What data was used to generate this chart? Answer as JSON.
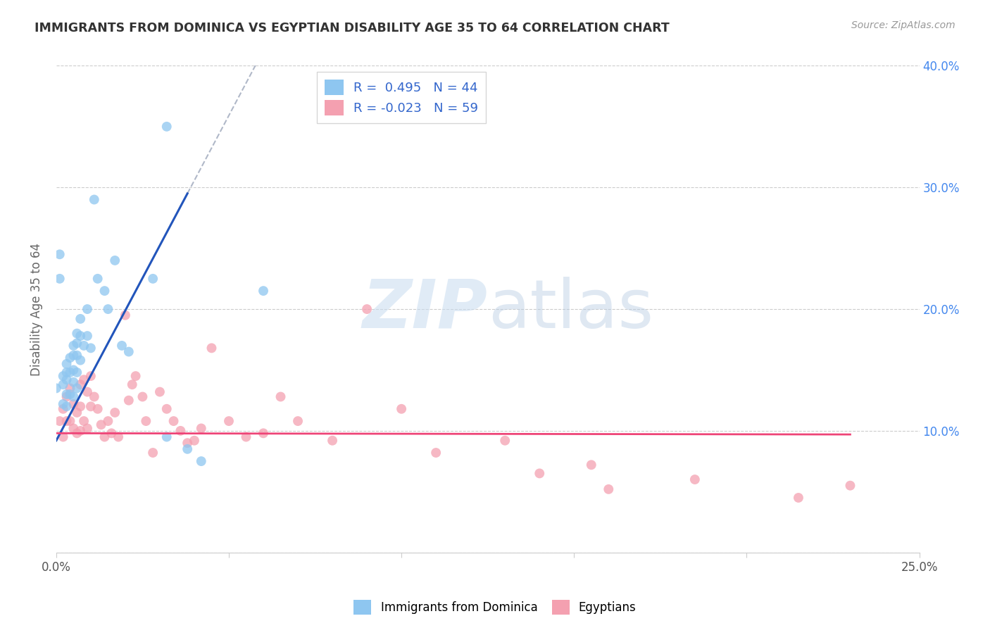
{
  "title": "IMMIGRANTS FROM DOMINICA VS EGYPTIAN DISABILITY AGE 35 TO 64 CORRELATION CHART",
  "source": "Source: ZipAtlas.com",
  "ylabel": "Disability Age 35 to 64",
  "xlim": [
    0.0,
    0.25
  ],
  "ylim": [
    0.0,
    0.4
  ],
  "dominica_R": 0.495,
  "dominica_N": 44,
  "egyptian_R": -0.023,
  "egyptian_N": 59,
  "blue_color": "#8ec6f0",
  "pink_color": "#f4a0b0",
  "blue_line_color": "#2255bb",
  "pink_line_color": "#ee4477",
  "dashed_line_color": "#b0b8c8",
  "watermark_zip": "ZIP",
  "watermark_atlas": "atlas",
  "dominica_x": [
    0.0,
    0.001,
    0.001,
    0.002,
    0.002,
    0.002,
    0.003,
    0.003,
    0.003,
    0.003,
    0.003,
    0.004,
    0.004,
    0.004,
    0.005,
    0.005,
    0.005,
    0.005,
    0.005,
    0.006,
    0.006,
    0.006,
    0.006,
    0.006,
    0.007,
    0.007,
    0.007,
    0.008,
    0.009,
    0.009,
    0.01,
    0.011,
    0.012,
    0.014,
    0.015,
    0.017,
    0.019,
    0.021,
    0.028,
    0.032,
    0.032,
    0.038,
    0.042,
    0.06
  ],
  "dominica_y": [
    0.135,
    0.245,
    0.225,
    0.145,
    0.138,
    0.122,
    0.155,
    0.148,
    0.142,
    0.13,
    0.12,
    0.16,
    0.148,
    0.13,
    0.17,
    0.162,
    0.15,
    0.14,
    0.128,
    0.18,
    0.172,
    0.162,
    0.148,
    0.135,
    0.192,
    0.178,
    0.158,
    0.17,
    0.2,
    0.178,
    0.168,
    0.29,
    0.225,
    0.215,
    0.2,
    0.24,
    0.17,
    0.165,
    0.225,
    0.35,
    0.095,
    0.085,
    0.075,
    0.215
  ],
  "egyptian_x": [
    0.001,
    0.002,
    0.002,
    0.003,
    0.003,
    0.004,
    0.004,
    0.005,
    0.005,
    0.006,
    0.006,
    0.007,
    0.007,
    0.007,
    0.008,
    0.008,
    0.009,
    0.009,
    0.01,
    0.01,
    0.011,
    0.012,
    0.013,
    0.014,
    0.015,
    0.016,
    0.017,
    0.018,
    0.02,
    0.021,
    0.022,
    0.023,
    0.025,
    0.026,
    0.028,
    0.03,
    0.032,
    0.034,
    0.036,
    0.038,
    0.04,
    0.042,
    0.045,
    0.05,
    0.055,
    0.06,
    0.065,
    0.07,
    0.08,
    0.09,
    0.1,
    0.11,
    0.13,
    0.14,
    0.155,
    0.16,
    0.185,
    0.215,
    0.23
  ],
  "egyptian_y": [
    0.108,
    0.118,
    0.095,
    0.128,
    0.108,
    0.135,
    0.108,
    0.122,
    0.102,
    0.115,
    0.098,
    0.138,
    0.12,
    0.1,
    0.142,
    0.108,
    0.132,
    0.102,
    0.145,
    0.12,
    0.128,
    0.118,
    0.105,
    0.095,
    0.108,
    0.098,
    0.115,
    0.095,
    0.195,
    0.125,
    0.138,
    0.145,
    0.128,
    0.108,
    0.082,
    0.132,
    0.118,
    0.108,
    0.1,
    0.09,
    0.092,
    0.102,
    0.168,
    0.108,
    0.095,
    0.098,
    0.128,
    0.108,
    0.092,
    0.2,
    0.118,
    0.082,
    0.092,
    0.065,
    0.072,
    0.052,
    0.06,
    0.045,
    0.055
  ],
  "blue_line_x0": 0.0,
  "blue_line_y0": 0.092,
  "blue_line_x1": 0.038,
  "blue_line_y1": 0.295,
  "blue_line_xend": 0.06,
  "pink_line_x0": 0.0,
  "pink_line_y0": 0.098,
  "pink_line_x1": 0.23,
  "pink_line_y1": 0.097
}
